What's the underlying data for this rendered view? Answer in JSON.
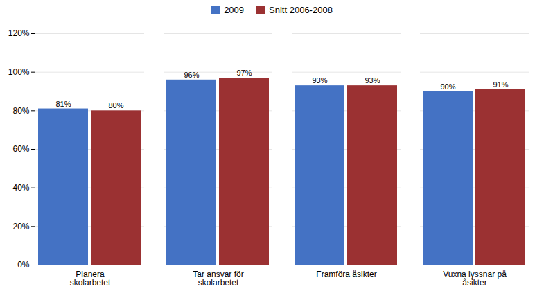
{
  "chart_data": {
    "type": "bar",
    "categories": [
      "Planera\nskolarbetet",
      "Tar ansvar för\nskolarbetet",
      "Framföra åsikter",
      "Vuxna lyssnar på\nåsikter"
    ],
    "series": [
      {
        "name": "2009",
        "color": "#4472C4",
        "values": [
          0.81,
          0.96,
          0.93,
          0.9
        ],
        "value_labels": [
          "81%",
          "96%",
          "93%",
          "90%"
        ]
      },
      {
        "name": "Snitt 2006-2008",
        "color": "#9B3132",
        "values": [
          0.8,
          0.97,
          0.93,
          0.91
        ],
        "value_labels": [
          "80%",
          "97%",
          "93%",
          "91%"
        ]
      }
    ],
    "ylim": [
      0,
      1.2
    ],
    "yticks": [
      {
        "value": 0,
        "label": "0%"
      },
      {
        "value": 0.2,
        "label": "20%"
      },
      {
        "value": 0.4,
        "label": "40%"
      },
      {
        "value": 0.6,
        "label": "60%"
      },
      {
        "value": 0.8,
        "label": "80%"
      },
      {
        "value": 1.0,
        "label": "100%"
      },
      {
        "value": 1.2,
        "label": "120%"
      }
    ],
    "grid": true,
    "legend": "top",
    "data_labels": true
  }
}
